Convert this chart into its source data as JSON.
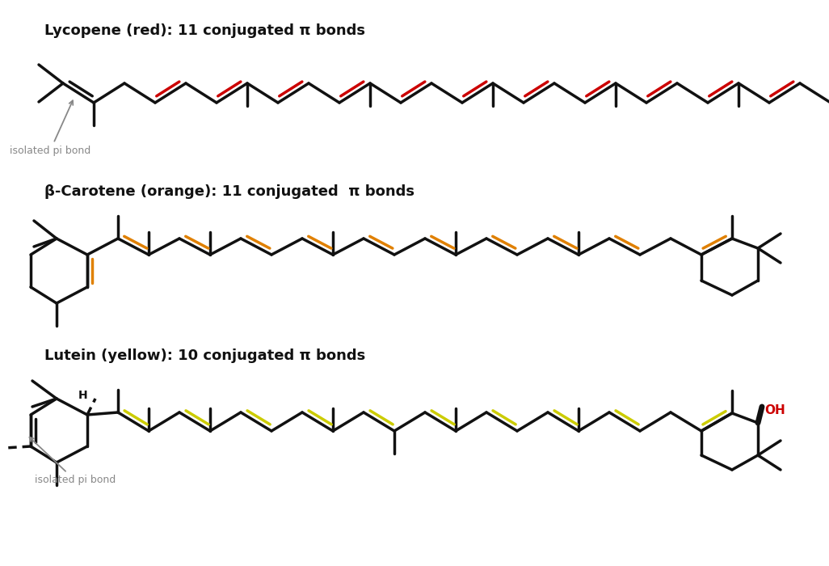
{
  "title1": "Lycopene (red): 11 conjugated π bonds",
  "title2": "β-Carotene (orange): 11 conjugated  π bonds",
  "title3": "Lutein (yellow): 10 conjugated π bonds",
  "color_lycopene": "#cc0000",
  "color_carotene": "#e08000",
  "color_lutein": "#cccc00",
  "color_black": "#111111",
  "color_red_ho": "#cc0000",
  "color_gray": "#888888",
  "bg_color": "#ffffff",
  "lw_mol": 2.5
}
